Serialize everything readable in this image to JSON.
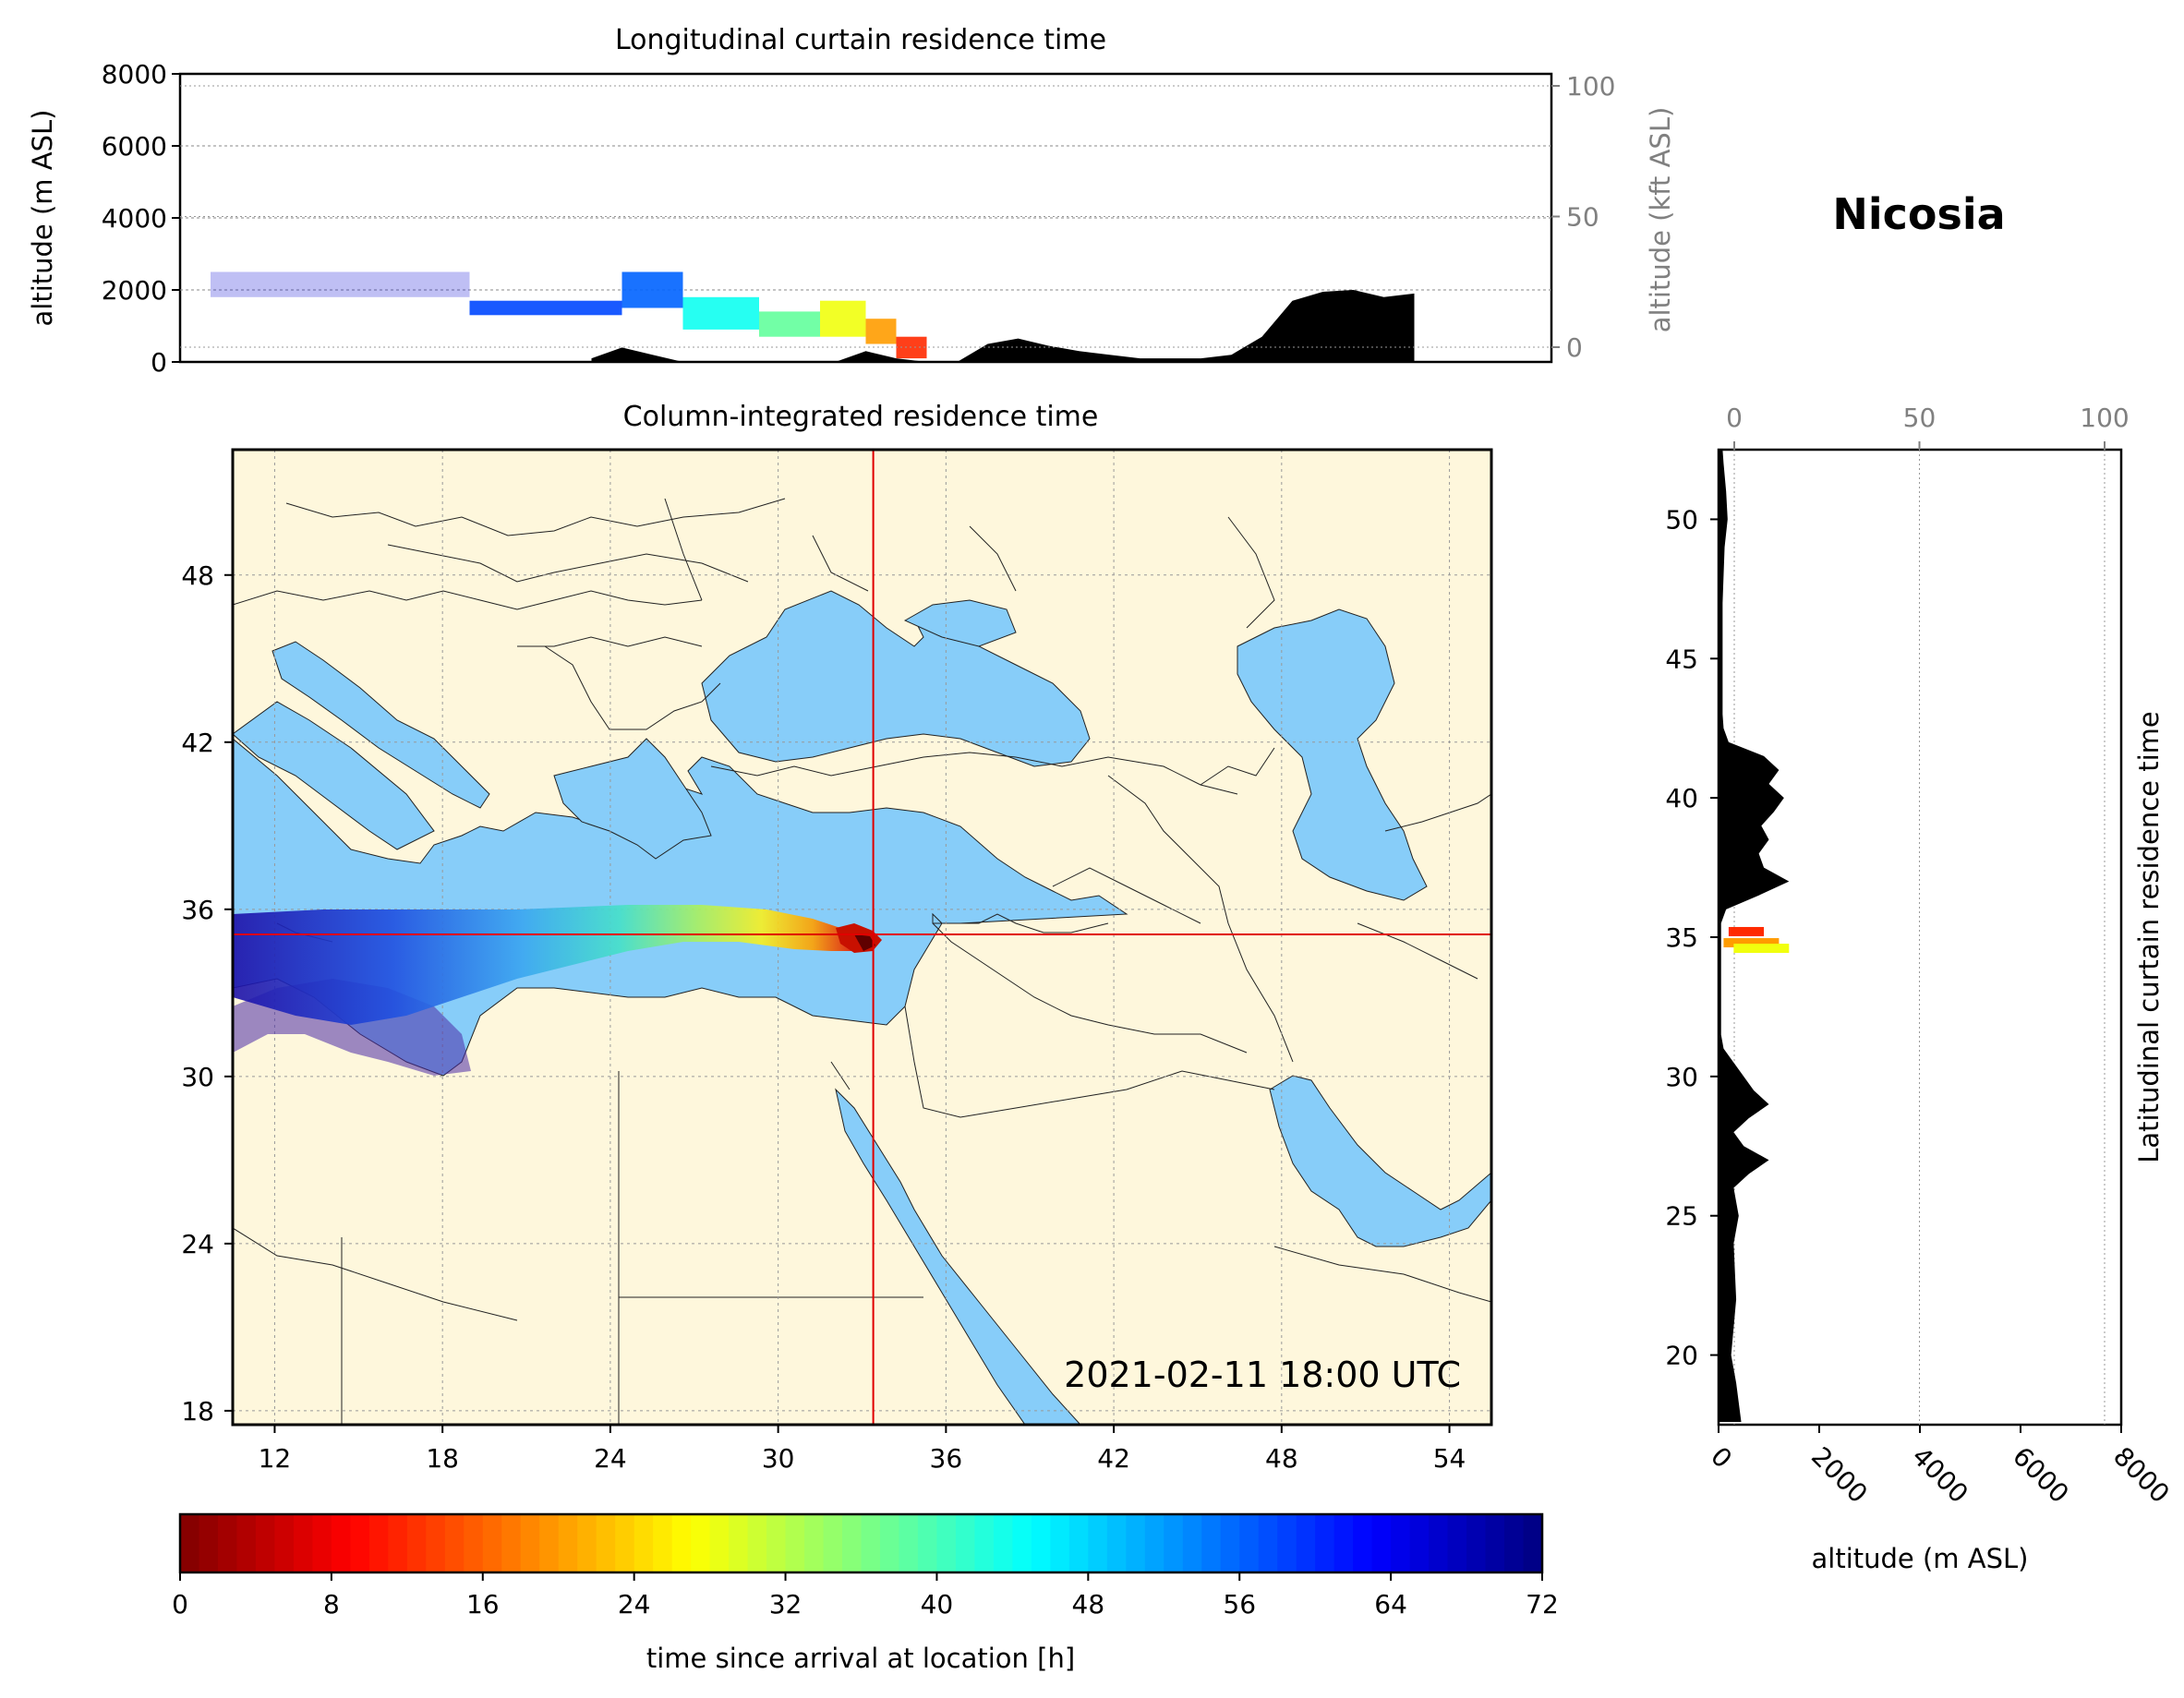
{
  "location_title": "Nicosia",
  "timestamp": "2021-02-11 18:00 UTC",
  "chart_data": [
    {
      "panel": "longitudinal-curtain",
      "type": "heatmap",
      "title": "Longitudinal curtain residence time",
      "ylabel": "altitude (m ASL)",
      "ylabel_right": "altitude (kft ASL)",
      "ylim": [
        0,
        8000
      ],
      "yticks": [
        0,
        2000,
        4000,
        6000,
        8000
      ],
      "yticks_right": [
        0,
        50,
        100
      ],
      "xlim": [
        10.5,
        55.5
      ],
      "terrain": {
        "lon": [
          24,
          25,
          26,
          27,
          28,
          29,
          30,
          31,
          32,
          33,
          34,
          35,
          36,
          37,
          38,
          39,
          40,
          41,
          42,
          43,
          44,
          45,
          46,
          47,
          48,
          49,
          50,
          51
        ],
        "alt": [
          100,
          400,
          200,
          0,
          0,
          0,
          0,
          0,
          0,
          300,
          100,
          0,
          0,
          500,
          650,
          450,
          300,
          200,
          100,
          100,
          100,
          200,
          700,
          1700,
          1950,
          2000,
          1800,
          1900
        ]
      },
      "plume": [
        {
          "lon": 11.5,
          "alt_min": 1800,
          "alt_max": 2500,
          "hours": 66
        },
        {
          "lon": 20.0,
          "alt_min": 1300,
          "alt_max": 1700,
          "hours": 58
        },
        {
          "lon": 25.0,
          "alt_min": 1500,
          "alt_max": 2500,
          "hours": 56
        },
        {
          "lon": 27.0,
          "alt_min": 900,
          "alt_max": 1800,
          "hours": 44
        },
        {
          "lon": 29.5,
          "alt_min": 700,
          "alt_max": 1400,
          "hours": 38
        },
        {
          "lon": 31.5,
          "alt_min": 700,
          "alt_max": 1700,
          "hours": 28
        },
        {
          "lon": 33.0,
          "alt_min": 500,
          "alt_max": 1200,
          "hours": 20
        },
        {
          "lon": 34.0,
          "alt_min": 100,
          "alt_max": 700,
          "hours": 12
        }
      ]
    },
    {
      "panel": "column-integrated-map",
      "type": "heatmap",
      "title": "Column-integrated residence time",
      "xlim": [
        10.5,
        55.5
      ],
      "ylim": [
        17.5,
        52.5
      ],
      "xticks": [
        12,
        18,
        24,
        30,
        36,
        42,
        48,
        54
      ],
      "yticks": [
        18,
        24,
        30,
        36,
        42,
        48
      ],
      "crosshair": {
        "lon": 33.4,
        "lat": 35.1
      },
      "colors": {
        "land": "#fef7dc",
        "sea": "#87cdf9",
        "crosshair": "#e00000"
      }
    },
    {
      "panel": "latitudinal-curtain",
      "type": "heatmap",
      "title": "Latitudinal curtain residence time",
      "xlabel": "altitude (m ASL)",
      "xlim": [
        0,
        8000
      ],
      "xticks": [
        0,
        2000,
        4000,
        6000,
        8000
      ],
      "xticks_top": [
        0,
        50,
        100
      ],
      "ylim": [
        17.5,
        52.5
      ],
      "yticks": [
        20,
        25,
        30,
        35,
        40,
        45,
        50
      ],
      "terrain": {
        "lat": [
          17.6,
          19,
          20,
          22,
          24,
          25,
          26,
          26.5,
          27,
          27.5,
          28,
          28.5,
          29,
          29.5,
          30,
          30.5,
          31,
          31.5,
          32,
          33,
          34,
          35,
          35.5,
          36,
          36.5,
          37,
          37.5,
          38,
          38.5,
          39,
          39.5,
          40,
          40.5,
          41,
          41.5,
          42,
          42.5,
          43,
          44,
          45,
          46,
          47,
          48,
          49,
          50,
          51,
          52,
          52.5
        ],
        "alt": [
          450,
          350,
          250,
          350,
          300,
          400,
          300,
          600,
          1000,
          500,
          300,
          600,
          1000,
          700,
          500,
          300,
          100,
          50,
          50,
          50,
          50,
          50,
          50,
          150,
          800,
          1400,
          900,
          800,
          1000,
          850,
          1100,
          1300,
          1000,
          1200,
          900,
          200,
          100,
          80,
          80,
          80,
          80,
          80,
          100,
          120,
          180,
          150,
          100,
          80
        ]
      },
      "plume": [
        {
          "lat": 35.2,
          "alt_min": 200,
          "alt_max": 900,
          "hours": 12
        },
        {
          "lat": 34.8,
          "alt_min": 100,
          "alt_max": 1200,
          "hours": 20
        },
        {
          "lat": 34.6,
          "alt_min": 300,
          "alt_max": 1400,
          "hours": 28
        }
      ]
    },
    {
      "panel": "colorbar",
      "type": "heatmap",
      "xlabel": "time since arrival at location [h]",
      "range": [
        0,
        72
      ],
      "ticks": [
        0,
        8,
        16,
        24,
        32,
        40,
        48,
        56,
        64,
        72
      ],
      "colormap": "jet_r"
    }
  ]
}
